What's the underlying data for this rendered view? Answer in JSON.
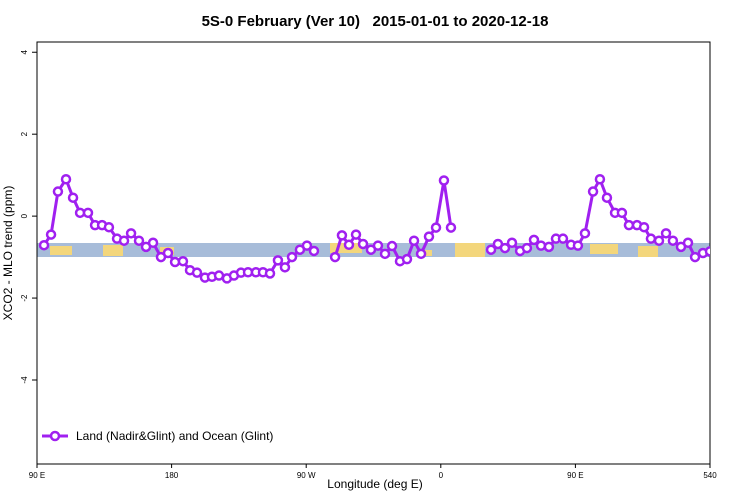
{
  "chart_data": {
    "type": "line",
    "title": "5S-0 February (Ver 10)   2015-01-01 to 2020-12-18",
    "x_label": "Longitude (deg E)",
    "y_label": "XCO2 - MLO trend (ppm)",
    "xlim": [
      90,
      540
    ],
    "ylim": [
      -6.05,
      4.25
    ],
    "xticks": [
      {
        "value": 90,
        "label": "90 E"
      },
      180,
      {
        "value": 270,
        "label": "90 W"
      },
      {
        "value": 360,
        "label": "0"
      },
      {
        "value": 450,
        "label": "90 E"
      },
      540
    ],
    "yticks": [
      -4,
      -2,
      0,
      2,
      4
    ],
    "legend_position": "bottom-left",
    "x": [
      94.7,
      99.4,
      104,
      109.4,
      114.1,
      118.8,
      124.1,
      128.8,
      133.5,
      138.1,
      143.5,
      148.2,
      152.9,
      158.2,
      162.9,
      167.6,
      172.9,
      177.6,
      182.3,
      187.6,
      192.3,
      197,
      202.3,
      207,
      211.7,
      217,
      221.7,
      226.4,
      231.1,
      236.4,
      241.1,
      245.8,
      251.1,
      255.8,
      260.5,
      265.8,
      270.5,
      275.2,
      282,
      289.3,
      293.9,
      298.6,
      303.3,
      308,
      313.3,
      318,
      322.7,
      327.4,
      332.7,
      337.4,
      342.1,
      346.8,
      352.1,
      356.8,
      362.1,
      366.8,
      380,
      393.6,
      398.2,
      402.9,
      407.6,
      413,
      417.6,
      422.3,
      427,
      432.3,
      437,
      441.7,
      447.1,
      451.7,
      456.4,
      461.8,
      466.4,
      471.1,
      476.5,
      481.1,
      485.8,
      491.2,
      495.9,
      500.5,
      505.9,
      510.6,
      515.2,
      520.6,
      525.3,
      530,
      535.3,
      540
    ],
    "series": [
      {
        "name": "Land (Nadir&Glint) and Ocean (Glint)",
        "color": "#a020f0",
        "values": [
          -0.71,
          -0.45,
          0.6,
          0.9,
          0.45,
          0.08,
          0.08,
          -0.22,
          -0.22,
          -0.27,
          -0.55,
          -0.6,
          -0.42,
          -0.6,
          -0.75,
          -0.65,
          -1.0,
          -0.9,
          -1.12,
          -1.1,
          -1.32,
          -1.38,
          -1.5,
          -1.48,
          -1.45,
          -1.52,
          -1.45,
          -1.38,
          -1.37,
          -1.37,
          -1.37,
          -1.4,
          -1.08,
          -1.25,
          -1.0,
          -0.82,
          -0.72,
          -0.85,
          null,
          -1.0,
          -0.47,
          -0.7,
          -0.45,
          -0.68,
          -0.82,
          -0.72,
          -0.92,
          -0.73,
          -1.1,
          -1.05,
          -0.6,
          -0.92,
          -0.5,
          -0.28,
          0.87,
          -0.28,
          null,
          -0.82,
          -0.68,
          -0.78,
          -0.65,
          -0.85,
          -0.78,
          -0.58,
          -0.72,
          -0.75,
          -0.55,
          -0.55,
          -0.7,
          -0.72,
          -0.42,
          0.6,
          0.9,
          0.45,
          0.08,
          0.08,
          -0.22,
          -0.22,
          -0.27,
          -0.55,
          -0.6,
          -0.42,
          -0.6,
          -0.75,
          -0.65,
          -1.0,
          -0.9,
          -0.86
        ]
      }
    ]
  }
}
